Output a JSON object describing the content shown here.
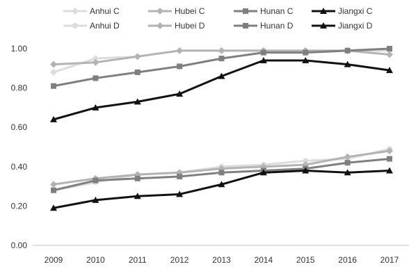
{
  "chart_data": {
    "type": "line",
    "x": [
      "2009",
      "2010",
      "2011",
      "2012",
      "2013",
      "2014",
      "2015",
      "2016",
      "2017"
    ],
    "ylim": [
      0,
      1.0
    ],
    "yticks": [
      "0.00",
      "0.20",
      "0.40",
      "0.60",
      "0.80",
      "1.00"
    ],
    "legend_position": "top",
    "grid": false,
    "series": [
      {
        "name": "Anhui C",
        "color": "#dcdcdc",
        "marker": "diamond",
        "values": [
          0.88,
          0.95,
          0.96,
          0.99,
          0.99,
          0.99,
          0.99,
          0.99,
          0.99
        ]
      },
      {
        "name": "Hubei C",
        "color": "#b3b3b3",
        "marker": "diamond",
        "values": [
          0.92,
          0.93,
          0.96,
          0.99,
          0.99,
          0.99,
          0.99,
          0.99,
          0.97
        ]
      },
      {
        "name": "Hunan C",
        "color": "#7f7f7f",
        "marker": "square",
        "values": [
          0.81,
          0.85,
          0.88,
          0.91,
          0.95,
          0.98,
          0.98,
          0.99,
          1.0
        ]
      },
      {
        "name": "Jiangxi C",
        "color": "#111111",
        "marker": "triangle",
        "values": [
          0.64,
          0.7,
          0.73,
          0.77,
          0.86,
          0.94,
          0.94,
          0.92,
          0.89
        ]
      },
      {
        "name": "Anhui D",
        "color": "#dcdcdc",
        "marker": "circle",
        "values": [
          0.28,
          0.32,
          0.36,
          0.37,
          0.4,
          0.41,
          0.43,
          0.44,
          0.49
        ]
      },
      {
        "name": "Hubei D",
        "color": "#b3b3b3",
        "marker": "diamond",
        "values": [
          0.31,
          0.34,
          0.36,
          0.37,
          0.39,
          0.4,
          0.41,
          0.45,
          0.48
        ]
      },
      {
        "name": "Hunan D",
        "color": "#7f7f7f",
        "marker": "square",
        "values": [
          0.28,
          0.33,
          0.34,
          0.35,
          0.37,
          0.38,
          0.39,
          0.42,
          0.44
        ]
      },
      {
        "name": "Jiangxi D",
        "color": "#111111",
        "marker": "triangle",
        "values": [
          0.19,
          0.23,
          0.25,
          0.26,
          0.31,
          0.37,
          0.38,
          0.37,
          0.38
        ]
      }
    ]
  }
}
